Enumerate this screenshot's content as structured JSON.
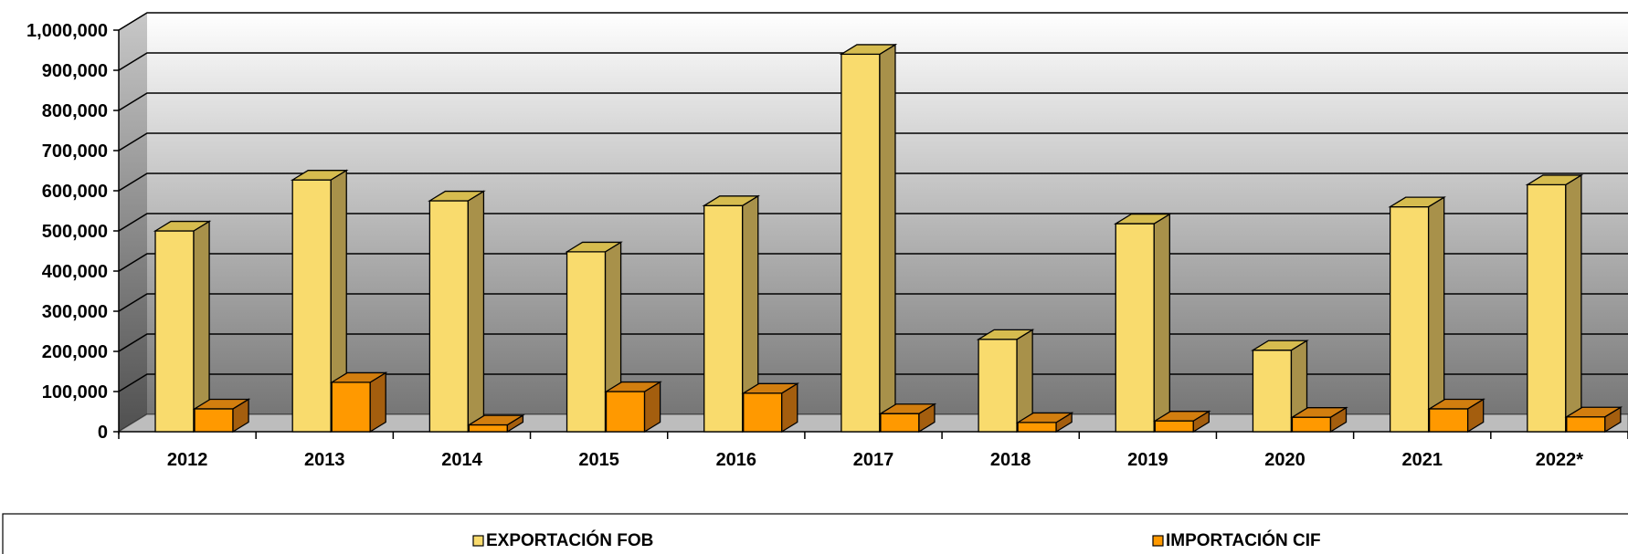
{
  "chart_data": {
    "type": "bar",
    "categories": [
      "2012",
      "2013",
      "2014",
      "2015",
      "2016",
      "2017",
      "2018",
      "2019",
      "2020",
      "2021",
      "2022*"
    ],
    "series": [
      {
        "name": "EXPORTACIÓN FOB",
        "values": [
          500000,
          627000,
          575000,
          448000,
          563000,
          940000,
          230000,
          518000,
          203000,
          560000,
          615000
        ]
      },
      {
        "name": "IMPORTACIÓN CIF",
        "values": [
          57000,
          123000,
          17000,
          100000,
          96000,
          45000,
          23000,
          27000,
          36000,
          57000,
          37000
        ]
      }
    ],
    "y_ticks": [
      "0",
      "100,000",
      "200,000",
      "300,000",
      "400,000",
      "500,000",
      "600,000",
      "700,000",
      "800,000",
      "900,000",
      "1,000,000"
    ],
    "ylim": [
      0,
      1000000
    ],
    "grid": true,
    "legend_position": "bottom",
    "colors": {
      "series1_front": "#F9DB6D",
      "series1_side": "#A8914A",
      "series1_top": "#D6BC4F",
      "series2_front": "#FF9900",
      "series2_side": "#A45E0E",
      "series2_top": "#D27E0F",
      "wall_top": "#FFFFFF",
      "wall_bottom": "#787878",
      "floor": "#BDBDBD"
    }
  }
}
